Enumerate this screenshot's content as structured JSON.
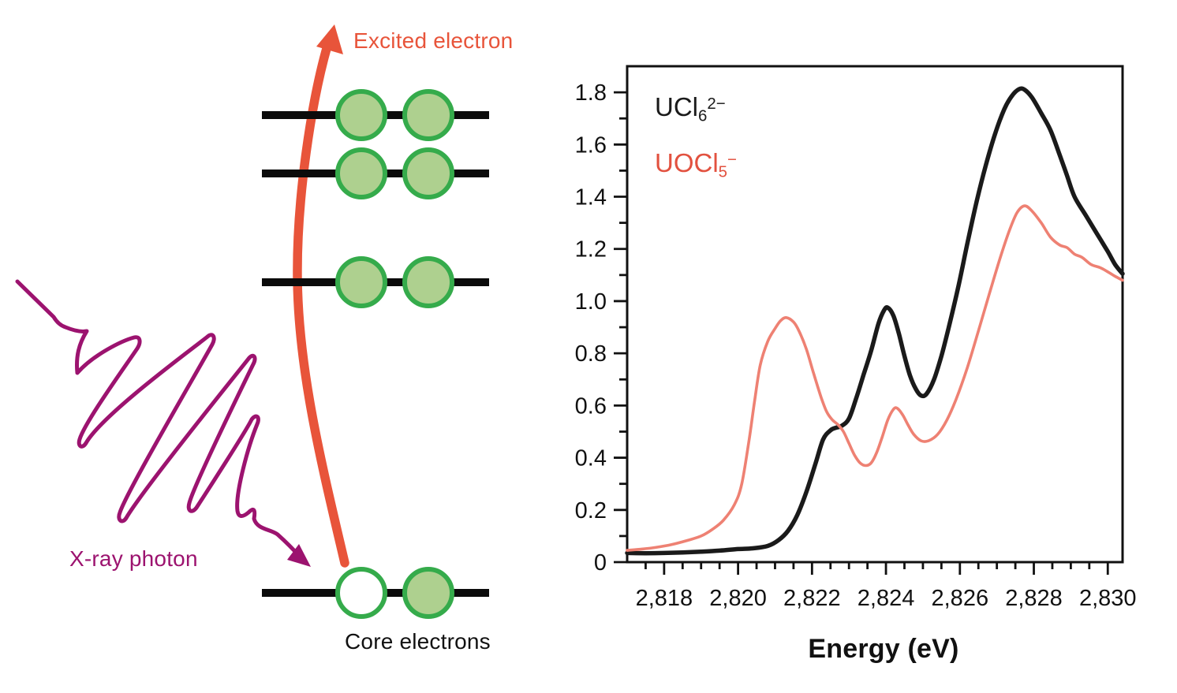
{
  "diagram": {
    "labels": {
      "excited": "Excited electron",
      "xray": "X-ray photon",
      "core": "Core electrons"
    },
    "colors": {
      "orange": "#e8543a",
      "purple": "#9c136f",
      "green_fill": "#aed08f",
      "green_stroke": "#35ab4b",
      "line_black": "#0b0b0b"
    },
    "levels": [
      {
        "name": "upper-level-1",
        "electrons": [
          "filled",
          "filled"
        ]
      },
      {
        "name": "upper-level-2",
        "electrons": [
          "filled",
          "filled"
        ]
      },
      {
        "name": "upper-level-3",
        "electrons": [
          "filled",
          "filled"
        ]
      },
      {
        "name": "core-level",
        "electrons": [
          "empty",
          "filled"
        ],
        "label": "Core electrons"
      }
    ]
  },
  "chart_data": {
    "type": "line",
    "title": "",
    "xlabel": "Energy (eV)",
    "ylabel": "",
    "xlim": [
      2817,
      2830.4
    ],
    "ylim": [
      0,
      1.9
    ],
    "grid": false,
    "legend_position": "top-left",
    "x_major_ticks": [
      2818,
      2820,
      2822,
      2824,
      2826,
      2828,
      2830
    ],
    "x_tick_labels": [
      "2,818",
      "2,820",
      "2,822",
      "2,824",
      "2,826",
      "2,828",
      "2,830"
    ],
    "x_minor_step": 0.5,
    "y_major_ticks": [
      0,
      0.2,
      0.4,
      0.6,
      0.8,
      1.0,
      1.2,
      1.4,
      1.6,
      1.8
    ],
    "y_tick_labels": [
      "0",
      "0.2",
      "0.4",
      "0.6",
      "0.8",
      "1.0",
      "1.2",
      "1.4",
      "1.6",
      "1.8"
    ],
    "y_minor_step": 0.1,
    "legend": [
      {
        "base": "UCl",
        "sub": "6",
        "sup": "2−",
        "color": "#1a1a1a"
      },
      {
        "base": "UOCl",
        "sub": "5",
        "sup": "−",
        "color": "#e2513f"
      }
    ],
    "series": [
      {
        "name": "UCl6 2-",
        "color": "#1a1a1a",
        "width": 5.5,
        "points": [
          [
            2817.0,
            0.035
          ],
          [
            2817.5,
            0.034
          ],
          [
            2818.0,
            0.035
          ],
          [
            2818.5,
            0.037
          ],
          [
            2819.0,
            0.04
          ],
          [
            2819.5,
            0.044
          ],
          [
            2820.0,
            0.05
          ],
          [
            2820.4,
            0.053
          ],
          [
            2820.8,
            0.062
          ],
          [
            2821.1,
            0.085
          ],
          [
            2821.35,
            0.12
          ],
          [
            2821.6,
            0.18
          ],
          [
            2821.85,
            0.27
          ],
          [
            2822.1,
            0.38
          ],
          [
            2822.3,
            0.47
          ],
          [
            2822.5,
            0.505
          ],
          [
            2822.65,
            0.515
          ],
          [
            2822.8,
            0.522
          ],
          [
            2823.0,
            0.55
          ],
          [
            2823.2,
            0.63
          ],
          [
            2823.4,
            0.72
          ],
          [
            2823.6,
            0.81
          ],
          [
            2823.8,
            0.915
          ],
          [
            2823.95,
            0.965
          ],
          [
            2824.05,
            0.975
          ],
          [
            2824.2,
            0.945
          ],
          [
            2824.35,
            0.875
          ],
          [
            2824.5,
            0.79
          ],
          [
            2824.65,
            0.715
          ],
          [
            2824.8,
            0.665
          ],
          [
            2824.95,
            0.638
          ],
          [
            2825.1,
            0.645
          ],
          [
            2825.3,
            0.7
          ],
          [
            2825.5,
            0.79
          ],
          [
            2825.7,
            0.9
          ],
          [
            2825.95,
            1.05
          ],
          [
            2826.2,
            1.22
          ],
          [
            2826.45,
            1.38
          ],
          [
            2826.7,
            1.52
          ],
          [
            2826.95,
            1.64
          ],
          [
            2827.2,
            1.735
          ],
          [
            2827.4,
            1.785
          ],
          [
            2827.6,
            1.812
          ],
          [
            2827.75,
            1.81
          ],
          [
            2827.95,
            1.78
          ],
          [
            2828.2,
            1.72
          ],
          [
            2828.45,
            1.655
          ],
          [
            2828.7,
            1.56
          ],
          [
            2828.9,
            1.48
          ],
          [
            2829.1,
            1.4
          ],
          [
            2829.4,
            1.33
          ],
          [
            2829.7,
            1.26
          ],
          [
            2830.0,
            1.19
          ],
          [
            2830.2,
            1.14
          ],
          [
            2830.4,
            1.105
          ]
        ]
      },
      {
        "name": "UOCl5 -",
        "color": "#ee8173",
        "width": 3.6,
        "points": [
          [
            2817.0,
            0.045
          ],
          [
            2817.4,
            0.05
          ],
          [
            2817.8,
            0.057
          ],
          [
            2818.2,
            0.067
          ],
          [
            2818.6,
            0.082
          ],
          [
            2819.0,
            0.1
          ],
          [
            2819.3,
            0.125
          ],
          [
            2819.6,
            0.16
          ],
          [
            2819.9,
            0.22
          ],
          [
            2820.1,
            0.3
          ],
          [
            2820.3,
            0.47
          ],
          [
            2820.45,
            0.62
          ],
          [
            2820.6,
            0.755
          ],
          [
            2820.8,
            0.845
          ],
          [
            2821.0,
            0.895
          ],
          [
            2821.15,
            0.925
          ],
          [
            2821.3,
            0.937
          ],
          [
            2821.5,
            0.92
          ],
          [
            2821.65,
            0.885
          ],
          [
            2821.85,
            0.815
          ],
          [
            2822.05,
            0.72
          ],
          [
            2822.25,
            0.63
          ],
          [
            2822.4,
            0.575
          ],
          [
            2822.55,
            0.545
          ],
          [
            2822.7,
            0.527
          ],
          [
            2822.85,
            0.5
          ],
          [
            2823.0,
            0.455
          ],
          [
            2823.15,
            0.41
          ],
          [
            2823.3,
            0.38
          ],
          [
            2823.45,
            0.37
          ],
          [
            2823.6,
            0.38
          ],
          [
            2823.75,
            0.42
          ],
          [
            2823.9,
            0.48
          ],
          [
            2824.05,
            0.545
          ],
          [
            2824.2,
            0.585
          ],
          [
            2824.3,
            0.59
          ],
          [
            2824.45,
            0.565
          ],
          [
            2824.6,
            0.525
          ],
          [
            2824.75,
            0.49
          ],
          [
            2824.95,
            0.465
          ],
          [
            2825.15,
            0.465
          ],
          [
            2825.4,
            0.49
          ],
          [
            2825.65,
            0.545
          ],
          [
            2825.9,
            0.625
          ],
          [
            2826.2,
            0.745
          ],
          [
            2826.5,
            0.885
          ],
          [
            2826.8,
            1.03
          ],
          [
            2827.1,
            1.17
          ],
          [
            2827.35,
            1.275
          ],
          [
            2827.55,
            1.34
          ],
          [
            2827.75,
            1.365
          ],
          [
            2827.95,
            1.345
          ],
          [
            2828.2,
            1.3
          ],
          [
            2828.45,
            1.245
          ],
          [
            2828.7,
            1.215
          ],
          [
            2828.9,
            1.205
          ],
          [
            2829.1,
            1.18
          ],
          [
            2829.3,
            1.168
          ],
          [
            2829.55,
            1.14
          ],
          [
            2829.8,
            1.128
          ],
          [
            2830.05,
            1.108
          ],
          [
            2830.2,
            1.095
          ],
          [
            2830.4,
            1.08
          ]
        ]
      }
    ]
  }
}
